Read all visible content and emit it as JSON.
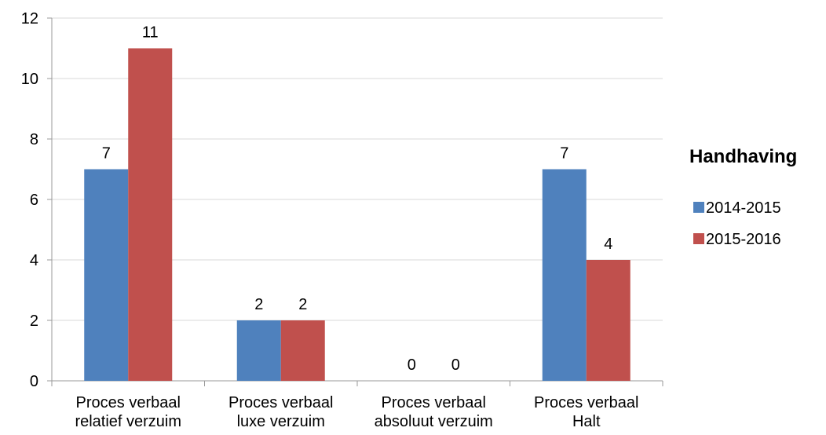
{
  "chart_data": {
    "type": "bar",
    "categories": [
      [
        "Proces verbaal",
        "relatief verzuim"
      ],
      [
        "Proces verbaal",
        "luxe verzuim"
      ],
      [
        "Proces verbaal",
        "absoluut verzuim"
      ],
      [
        "Proces verbaal",
        "Halt"
      ]
    ],
    "series": [
      {
        "name": "2014-2015",
        "values": [
          7,
          2,
          0,
          7
        ],
        "color": "#4f81bd"
      },
      {
        "name": "2015-2016",
        "values": [
          11,
          2,
          0,
          4
        ],
        "color": "#c0504d"
      }
    ],
    "ylim": [
      0,
      12
    ],
    "yticks": [
      0,
      2,
      4,
      6,
      8,
      10,
      12
    ],
    "legend_title": "Handhaving",
    "legend_position": "right",
    "grid": true,
    "data_labels": true
  }
}
